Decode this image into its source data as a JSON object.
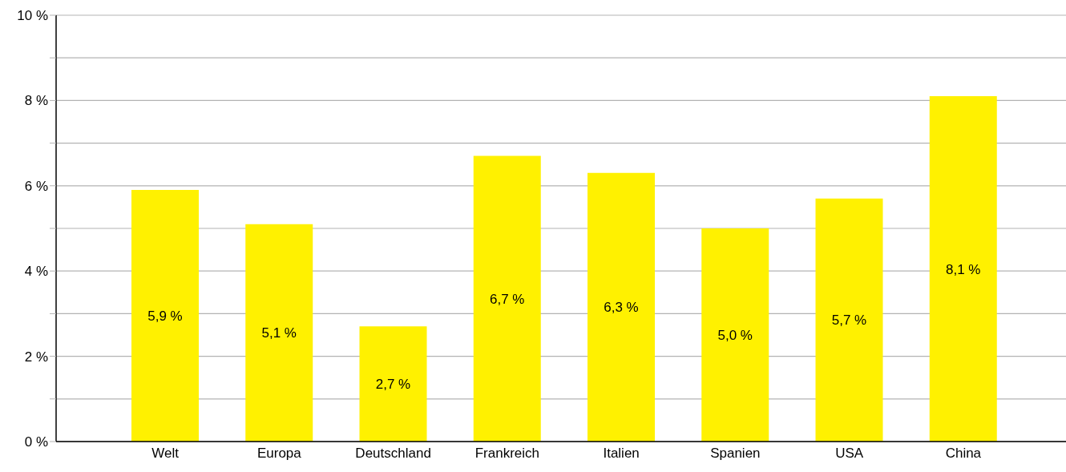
{
  "chart_data": {
    "type": "bar",
    "categories": [
      "Welt",
      "Europa",
      "Deutschland",
      "Frankreich",
      "Italien",
      "Spanien",
      "USA",
      "China"
    ],
    "values": [
      5.9,
      5.1,
      2.7,
      6.7,
      6.3,
      5.0,
      5.7,
      8.1
    ],
    "value_labels": [
      "5,9 %",
      "5,1 %",
      "2,7 %",
      "6,7 %",
      "6,3 %",
      "5,0 %",
      "5,7 %",
      "8,1 %"
    ],
    "color": "#fff100",
    "ylim": [
      0,
      10
    ],
    "yticks": [
      {
        "value": 0,
        "label": "0 %"
      },
      {
        "value": 1,
        "label": null
      },
      {
        "value": 2,
        "label": "2 %"
      },
      {
        "value": 3,
        "label": null
      },
      {
        "value": 4,
        "label": "4 %"
      },
      {
        "value": 5,
        "label": null
      },
      {
        "value": 6,
        "label": "6 %"
      },
      {
        "value": 7,
        "label": null
      },
      {
        "value": 8,
        "label": "8 %"
      },
      {
        "value": 9,
        "label": null
      },
      {
        "value": 10,
        "label": "10 %"
      }
    ],
    "grid": "y",
    "legend": false
  }
}
